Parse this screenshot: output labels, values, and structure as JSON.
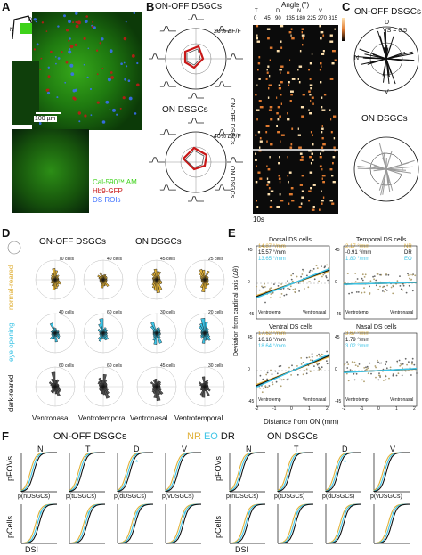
{
  "colors": {
    "green": "#3ed21a",
    "red": "#c81818",
    "blue": "#3c70ff",
    "nr": "#e0b13a",
    "eo": "#3ec4e6",
    "dr": "#111111",
    "dark_gray": "#555555",
    "light_gray": "#aaaaaa"
  },
  "panel_labels": [
    "A",
    "B",
    "C",
    "D",
    "E",
    "F"
  ],
  "panelA": {
    "scale_bar": "100 µm",
    "legend": [
      "Cal-590™ AM",
      "Hb9-GFP",
      "DS ROIs"
    ],
    "compass": [
      "D",
      "N",
      "V",
      "T"
    ]
  },
  "panelB": {
    "title_onoff": "ON-OFF DSGCs",
    "title_on": "ON DSGCs",
    "scale_onoff": "20% ΔF/F",
    "scale_on": "40% ΔF/F",
    "angle_title": "Angle (°)",
    "angle_dirs": [
      "T",
      "",
      "D",
      "",
      "N",
      "",
      "V",
      ""
    ],
    "angles": [
      "0",
      "45",
      "90",
      "135",
      "180",
      "225",
      "270",
      "315"
    ],
    "row_onoff": "ON-OFF DSGCs",
    "row_on": "ON DSGCs",
    "time": "10s",
    "colorbar": [
      "1.0",
      "0.5",
      "0"
    ]
  },
  "panelC": {
    "title_onoff": "ON-OFF DSGCs",
    "title_on": "ON DSGCs",
    "vs_label": "VS = 0.5",
    "dirs": [
      "D",
      "N",
      "V"
    ]
  },
  "panelD": {
    "col_onoff": "ON-OFF DSGCs",
    "col_on": "ON DSGCs",
    "rows": [
      "normal-reared",
      "eye opening",
      "dark-reared"
    ],
    "counts": [
      [
        "70 cells",
        "40 cells",
        "45 cells",
        "25 cells"
      ],
      [
        "40 cells",
        "60 cells",
        "30 cells",
        "20 cells"
      ],
      [
        "60 cells",
        "60 cells",
        "45 cells",
        "30 cells"
      ]
    ],
    "bottom": [
      "Ventronasal",
      "Ventrotemporal",
      "Ventronasal",
      "Ventrotemporal"
    ]
  },
  "panelE": {
    "titles": [
      "Dorsal DS cells",
      "Temporal DS cells",
      "Ventral DS cells",
      "Nasal DS cells"
    ],
    "slopes": [
      [
        "14.87 °/mm",
        "15.57 °/mm",
        "13.65 °/mm"
      ],
      [
        "2.17 °/mm",
        "-0.91 °/mm",
        "1.80 °/mm"
      ],
      [
        "17.62 °/mm",
        "16.16 °/mm",
        "18.64 °/mm"
      ],
      [
        "3.67 °/mm",
        "1.79 °/mm",
        "3.02 °/mm"
      ]
    ],
    "legend": [
      "NR",
      "DR",
      "EO"
    ],
    "ylabel": "Deviation from cardinal axis (Δθ)",
    "xlabel": "Distance from ON (mm)",
    "yticks": [
      "45",
      "0",
      "-45"
    ],
    "xticks": [
      "-2",
      "-1",
      "0",
      "1",
      "2"
    ],
    "arrow_left": [
      "Ventrotemp",
      "Ventrotemp",
      "Ventrotemp",
      "Ventrotemp"
    ],
    "arrow_right": [
      "Ventronasal",
      "Ventronasal",
      "Ventronasal",
      "Ventronasal"
    ]
  },
  "panelF": {
    "legend": [
      "NR",
      "EO",
      "DR"
    ],
    "group_onoff": "ON-OFF DSGCs",
    "group_on": "ON DSGCs",
    "dirs": [
      "N",
      "T",
      "D",
      "V"
    ],
    "ylabel_top": "pFOVs",
    "ylabel_bottom": "pCells",
    "xlabels": [
      "p(nDSGCs)",
      "p(tDSGCs)",
      "p(dDSGCs)",
      "p(vDSGCs)"
    ],
    "xlabel_bottom": "DSI"
  }
}
